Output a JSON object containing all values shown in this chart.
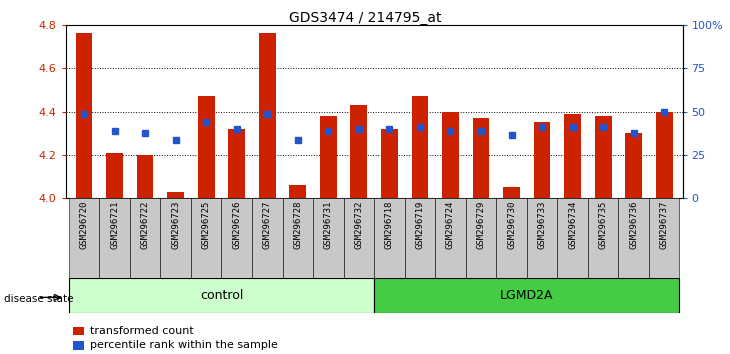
{
  "title": "GDS3474 / 214795_at",
  "samples": [
    "GSM296720",
    "GSM296721",
    "GSM296722",
    "GSM296723",
    "GSM296725",
    "GSM296726",
    "GSM296727",
    "GSM296728",
    "GSM296731",
    "GSM296732",
    "GSM296718",
    "GSM296719",
    "GSM296724",
    "GSM296729",
    "GSM296730",
    "GSM296733",
    "GSM296734",
    "GSM296735",
    "GSM296736",
    "GSM296737"
  ],
  "red_values": [
    4.76,
    4.21,
    4.2,
    4.03,
    4.47,
    4.32,
    4.76,
    4.06,
    4.38,
    4.43,
    4.32,
    4.47,
    4.4,
    4.37,
    4.05,
    4.35,
    4.39,
    4.38,
    4.3,
    4.4
  ],
  "blue_values": [
    4.39,
    4.31,
    4.3,
    4.27,
    4.35,
    4.32,
    4.39,
    4.27,
    4.31,
    4.32,
    4.32,
    4.33,
    4.31,
    4.31,
    4.29,
    4.33,
    4.33,
    4.33,
    4.3,
    4.4
  ],
  "ymin": 4.0,
  "ymax": 4.8,
  "yticks": [
    4.0,
    4.2,
    4.4,
    4.6,
    4.8
  ],
  "y2ticks": [
    0,
    25,
    50,
    75,
    100
  ],
  "y2labels": [
    "0",
    "25",
    "50",
    "75",
    "100%"
  ],
  "control_count": 10,
  "control_label": "control",
  "lgmd_label": "LGMD2A",
  "disease_state_label": "disease state",
  "legend_red": "transformed count",
  "legend_blue": "percentile rank within the sample",
  "bar_color_red": "#cc2200",
  "bar_color_blue": "#2255cc",
  "control_bg": "#ccffcc",
  "lgmd_bg": "#44cc44",
  "bar_width": 0.55,
  "tick_bg": "#c8c8c8"
}
